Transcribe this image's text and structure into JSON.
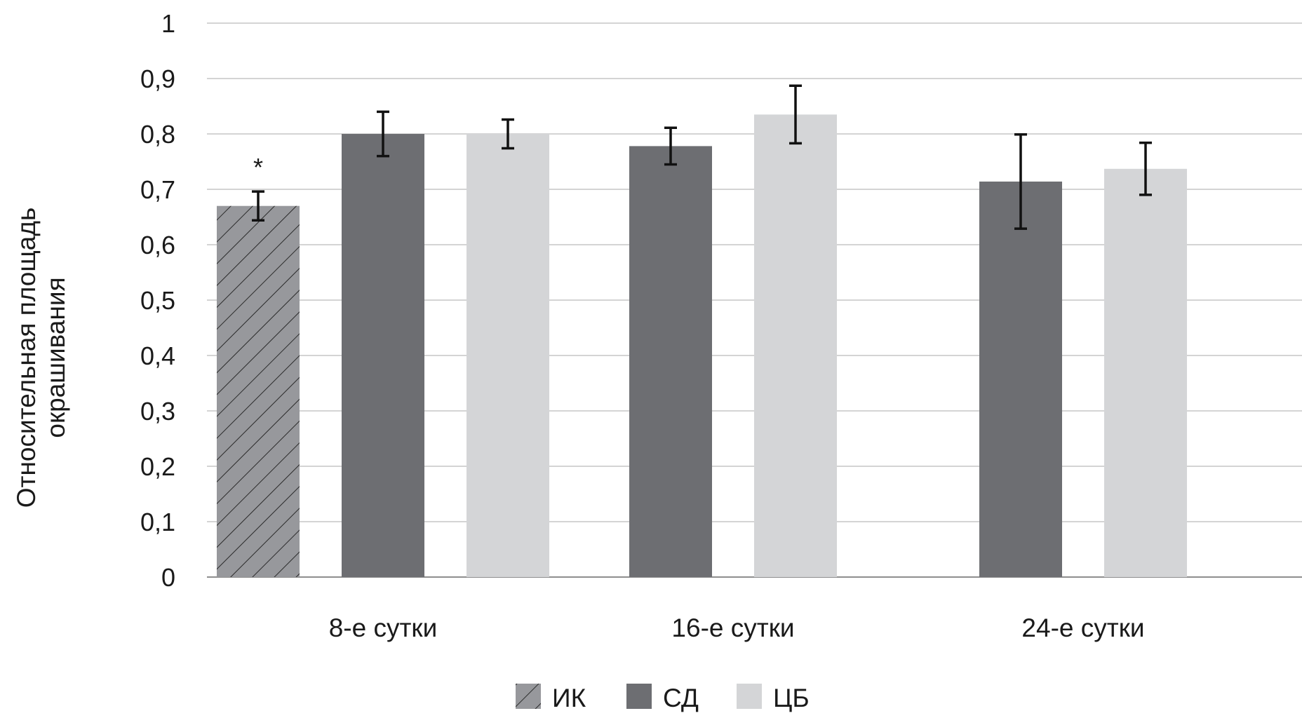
{
  "chart_data": {
    "type": "bar",
    "title": "",
    "xlabel": "",
    "ylabel": "Относительная площадь окрашивания",
    "ylabel_lines": [
      "Относительная площадь",
      "окрашивания"
    ],
    "categories": [
      "8-е сутки",
      "16-е сутки",
      "24-е сутки"
    ],
    "ylim": [
      0,
      1
    ],
    "yticks": [
      0,
      0.1,
      0.2,
      0.3,
      0.4,
      0.5,
      0.6,
      0.7,
      0.8,
      0.9,
      1
    ],
    "ytick_labels": [
      "0",
      "0,1",
      "0,2",
      "0,3",
      "0,4",
      "0,5",
      "0,6",
      "0,7",
      "0,8",
      "0,9",
      "1"
    ],
    "grid": true,
    "legend_position": "bottom",
    "series": [
      {
        "name": "ИК",
        "values": [
          0.67,
          null,
          null
        ],
        "errors": [
          0.026,
          null,
          null
        ],
        "color": "#97989c",
        "pattern": "hatch"
      },
      {
        "name": "СД",
        "values": [
          0.8,
          0.778,
          0.714
        ],
        "errors": [
          0.04,
          0.033,
          0.085
        ],
        "color": "#6d6e72",
        "pattern": "solid"
      },
      {
        "name": "ЦБ",
        "values": [
          0.8,
          0.835,
          0.737
        ],
        "errors": [
          0.026,
          0.052,
          0.047
        ],
        "color": "#d4d5d7",
        "pattern": "solid"
      }
    ],
    "annotations": [
      {
        "text": "*",
        "series": "ИК",
        "category": "8-е сутки"
      }
    ]
  }
}
